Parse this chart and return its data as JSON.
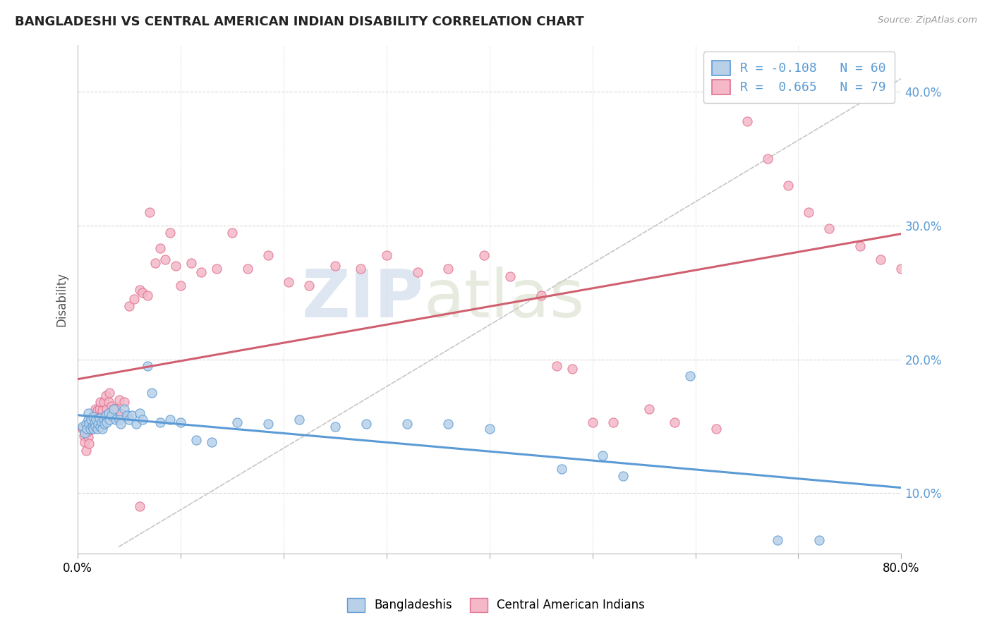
{
  "title": "BANGLADESHI VS CENTRAL AMERICAN INDIAN DISABILITY CORRELATION CHART",
  "source": "Source: ZipAtlas.com",
  "ylabel": "Disability",
  "xlim": [
    0.0,
    0.8
  ],
  "ylim": [
    0.055,
    0.435
  ],
  "yticks": [
    0.1,
    0.2,
    0.3,
    0.4
  ],
  "ytick_labels": [
    "10.0%",
    "20.0%",
    "30.0%",
    "40.0%"
  ],
  "xticks": [
    0.0,
    0.1,
    0.2,
    0.3,
    0.4,
    0.5,
    0.6,
    0.7,
    0.8
  ],
  "R_blue": -0.108,
  "N_blue": 60,
  "R_pink": 0.665,
  "N_pink": 79,
  "blue_face_color": "#b8d0e8",
  "pink_face_color": "#f4b8c8",
  "blue_edge_color": "#5b9bd5",
  "pink_edge_color": "#e07090",
  "blue_line_color": "#5b9bd5",
  "pink_line_color": "#d06070",
  "diag_color": "#c0c0c0",
  "grid_color": "#d8d8d8",
  "background_color": "#ffffff",
  "watermark_zip": "ZIP",
  "watermark_atlas": "atlas",
  "blue_scatter_x": [
    0.005,
    0.007,
    0.008,
    0.009,
    0.01,
    0.01,
    0.011,
    0.012,
    0.013,
    0.014,
    0.015,
    0.015,
    0.016,
    0.017,
    0.018,
    0.019,
    0.02,
    0.021,
    0.022,
    0.023,
    0.024,
    0.025,
    0.026,
    0.027,
    0.028,
    0.03,
    0.031,
    0.033,
    0.035,
    0.037,
    0.04,
    0.042,
    0.045,
    0.048,
    0.05,
    0.053,
    0.057,
    0.06,
    0.063,
    0.068,
    0.072,
    0.08,
    0.09,
    0.1,
    0.115,
    0.13,
    0.155,
    0.185,
    0.215,
    0.25,
    0.28,
    0.32,
    0.36,
    0.4,
    0.47,
    0.51,
    0.53,
    0.595,
    0.68,
    0.72
  ],
  "blue_scatter_y": [
    0.15,
    0.145,
    0.152,
    0.148,
    0.155,
    0.16,
    0.152,
    0.148,
    0.155,
    0.15,
    0.148,
    0.157,
    0.153,
    0.15,
    0.155,
    0.148,
    0.152,
    0.156,
    0.15,
    0.153,
    0.148,
    0.155,
    0.152,
    0.158,
    0.153,
    0.16,
    0.155,
    0.158,
    0.163,
    0.155,
    0.155,
    0.152,
    0.163,
    0.158,
    0.155,
    0.158,
    0.152,
    0.16,
    0.155,
    0.195,
    0.175,
    0.153,
    0.155,
    0.153,
    0.14,
    0.138,
    0.153,
    0.152,
    0.155,
    0.15,
    0.152,
    0.152,
    0.152,
    0.148,
    0.118,
    0.128,
    0.113,
    0.188,
    0.065,
    0.065
  ],
  "pink_scatter_x": [
    0.005,
    0.006,
    0.007,
    0.008,
    0.009,
    0.01,
    0.01,
    0.011,
    0.011,
    0.012,
    0.013,
    0.014,
    0.015,
    0.016,
    0.017,
    0.018,
    0.019,
    0.02,
    0.021,
    0.022,
    0.023,
    0.024,
    0.025,
    0.026,
    0.027,
    0.028,
    0.03,
    0.031,
    0.033,
    0.035,
    0.037,
    0.04,
    0.042,
    0.045,
    0.048,
    0.05,
    0.055,
    0.06,
    0.063,
    0.068,
    0.07,
    0.075,
    0.08,
    0.085,
    0.09,
    0.095,
    0.1,
    0.11,
    0.12,
    0.135,
    0.15,
    0.165,
    0.185,
    0.205,
    0.225,
    0.25,
    0.275,
    0.3,
    0.33,
    0.36,
    0.395,
    0.42,
    0.45,
    0.465,
    0.48,
    0.5,
    0.52,
    0.555,
    0.58,
    0.62,
    0.65,
    0.67,
    0.69,
    0.71,
    0.73,
    0.76,
    0.78,
    0.8,
    0.06
  ],
  "pink_scatter_y": [
    0.148,
    0.143,
    0.138,
    0.132,
    0.145,
    0.152,
    0.142,
    0.137,
    0.147,
    0.152,
    0.15,
    0.155,
    0.148,
    0.155,
    0.163,
    0.157,
    0.162,
    0.155,
    0.163,
    0.168,
    0.157,
    0.162,
    0.168,
    0.157,
    0.173,
    0.163,
    0.168,
    0.175,
    0.165,
    0.163,
    0.163,
    0.17,
    0.16,
    0.168,
    0.158,
    0.24,
    0.245,
    0.252,
    0.25,
    0.248,
    0.31,
    0.272,
    0.283,
    0.275,
    0.295,
    0.27,
    0.255,
    0.272,
    0.265,
    0.268,
    0.295,
    0.268,
    0.278,
    0.258,
    0.255,
    0.27,
    0.268,
    0.278,
    0.265,
    0.268,
    0.278,
    0.262,
    0.248,
    0.195,
    0.193,
    0.153,
    0.153,
    0.163,
    0.153,
    0.148,
    0.378,
    0.35,
    0.33,
    0.31,
    0.298,
    0.285,
    0.275,
    0.268,
    0.09
  ]
}
